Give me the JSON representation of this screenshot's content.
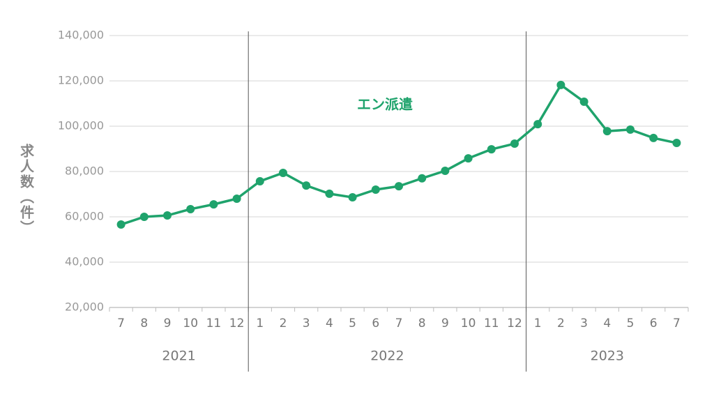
{
  "chart_data": {
    "type": "line",
    "y_label": "求人数（件）",
    "groups": [
      {
        "label": "2021",
        "categories": [
          "7",
          "8",
          "9",
          "10",
          "11",
          "12"
        ]
      },
      {
        "label": "2022",
        "categories": [
          "1",
          "2",
          "3",
          "4",
          "5",
          "6",
          "7",
          "8",
          "9",
          "10",
          "11",
          "12"
        ]
      },
      {
        "label": "2023",
        "categories": [
          "1",
          "2",
          "3",
          "4",
          "5",
          "6",
          "7"
        ]
      }
    ],
    "series": [
      {
        "name": "エン派遣",
        "color": "#1fa36c",
        "values": [
          56600,
          60000,
          60600,
          63400,
          65500,
          68000,
          75700,
          79400,
          73800,
          70200,
          68600,
          72000,
          73500,
          77000,
          80300,
          85800,
          89800,
          92300,
          100900,
          118200,
          110800,
          97800,
          98500,
          94800,
          92600
        ]
      }
    ],
    "ylim": [
      20000,
      140000
    ],
    "yticks": [
      {
        "value": 20000,
        "label": "20,000"
      },
      {
        "value": 40000,
        "label": "40,000"
      },
      {
        "value": 60000,
        "label": "60,000"
      },
      {
        "value": 80000,
        "label": "80,000"
      },
      {
        "value": 100000,
        "label": "100,000"
      },
      {
        "value": 120000,
        "label": "120,000"
      },
      {
        "value": 140000,
        "label": "140,000"
      }
    ],
    "grid": true
  }
}
